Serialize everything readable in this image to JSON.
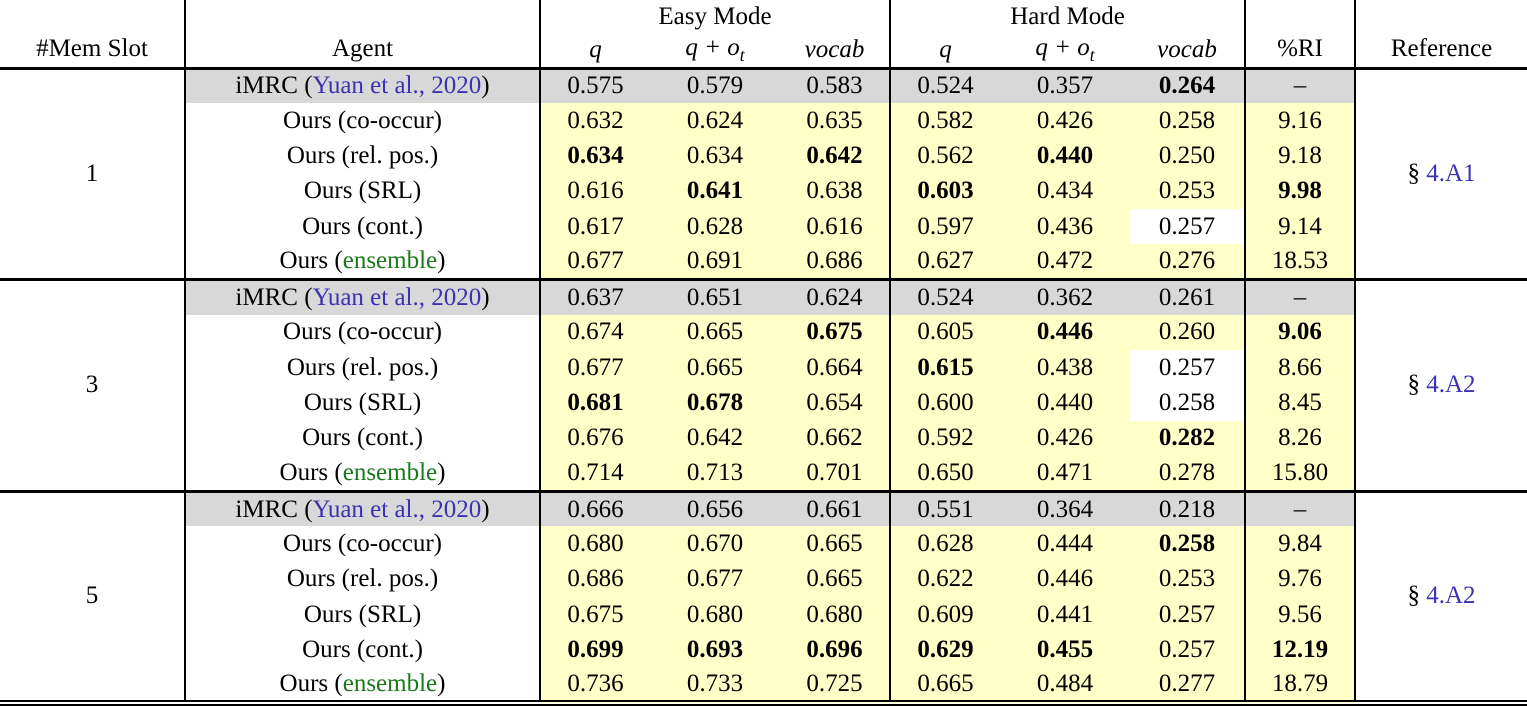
{
  "header": {
    "mem_slot": "#Mem Slot",
    "agent": "Agent",
    "easy_mode": "Easy Mode",
    "hard_mode": "Hard Mode",
    "subcolumns": [
      {
        "key": "q",
        "main": "q",
        "sub": ""
      },
      {
        "key": "q-ot",
        "main": "q + o",
        "sub": "t"
      },
      {
        "key": "vocab",
        "main": "vocab",
        "sub": ""
      }
    ],
    "ri": "%RI",
    "reference": "Reference"
  },
  "colors": {
    "baseline_row_bg": "#d8d8d8",
    "highlight_bg": "#ffffc8",
    "citation_link": "#3b32b4",
    "ensemble_green": "#1a7a1a"
  },
  "groups": [
    {
      "mem_slot": "1",
      "reference": {
        "prefix": "§ ",
        "link": "4.A1"
      },
      "rows": [
        {
          "baseline": true,
          "agent": [
            {
              "t": "iMRC ("
            },
            {
              "t": "Yuan et al., 2020",
              "c": "cite",
              "link": true
            },
            {
              "t": ")"
            }
          ],
          "values": [
            {
              "v": "0.575"
            },
            {
              "v": "0.579"
            },
            {
              "v": "0.583"
            },
            {
              "v": "0.524"
            },
            {
              "v": "0.357"
            },
            {
              "v": "0.264",
              "bold": true
            }
          ],
          "ri": {
            "v": "–"
          }
        },
        {
          "agent": [
            {
              "t": "Ours (co-occur)"
            }
          ],
          "values": [
            {
              "v": "0.632"
            },
            {
              "v": "0.624"
            },
            {
              "v": "0.635"
            },
            {
              "v": "0.582"
            },
            {
              "v": "0.426"
            },
            {
              "v": "0.258"
            }
          ],
          "ri": {
            "v": "9.16"
          }
        },
        {
          "agent": [
            {
              "t": "Ours (rel. pos.)"
            }
          ],
          "values": [
            {
              "v": "0.634",
              "bold": true
            },
            {
              "v": "0.634"
            },
            {
              "v": "0.642",
              "bold": true
            },
            {
              "v": "0.562"
            },
            {
              "v": "0.440",
              "bold": true
            },
            {
              "v": "0.250"
            }
          ],
          "ri": {
            "v": "9.18"
          }
        },
        {
          "agent": [
            {
              "t": "Ours (SRL)"
            }
          ],
          "values": [
            {
              "v": "0.616"
            },
            {
              "v": "0.641",
              "bold": true
            },
            {
              "v": "0.638"
            },
            {
              "v": "0.603",
              "bold": true
            },
            {
              "v": "0.434"
            },
            {
              "v": "0.253"
            }
          ],
          "ri": {
            "v": "9.98",
            "bold": true
          }
        },
        {
          "agent": [
            {
              "t": "Ours (cont.)"
            }
          ],
          "values": [
            {
              "v": "0.617"
            },
            {
              "v": "0.628"
            },
            {
              "v": "0.616"
            },
            {
              "v": "0.597"
            },
            {
              "v": "0.436"
            },
            {
              "v": "0.257",
              "plain": true
            }
          ],
          "ri": {
            "v": "9.14"
          }
        },
        {
          "agent": [
            {
              "t": "Ours ("
            },
            {
              "t": "ensemble",
              "c": "green"
            },
            {
              "t": ")"
            }
          ],
          "values": [
            {
              "v": "0.677"
            },
            {
              "v": "0.691"
            },
            {
              "v": "0.686"
            },
            {
              "v": "0.627"
            },
            {
              "v": "0.472"
            },
            {
              "v": "0.276"
            }
          ],
          "ri": {
            "v": "18.53"
          }
        }
      ]
    },
    {
      "mem_slot": "3",
      "reference": {
        "prefix": "§ ",
        "link": "4.A2"
      },
      "rows": [
        {
          "baseline": true,
          "agent": [
            {
              "t": "iMRC ("
            },
            {
              "t": "Yuan et al., 2020",
              "c": "cite",
              "link": true
            },
            {
              "t": ")"
            }
          ],
          "values": [
            {
              "v": "0.637"
            },
            {
              "v": "0.651"
            },
            {
              "v": "0.624"
            },
            {
              "v": "0.524"
            },
            {
              "v": "0.362"
            },
            {
              "v": "0.261"
            }
          ],
          "ri": {
            "v": "–"
          }
        },
        {
          "agent": [
            {
              "t": "Ours (co-occur)"
            }
          ],
          "values": [
            {
              "v": "0.674"
            },
            {
              "v": "0.665"
            },
            {
              "v": "0.675",
              "bold": true
            },
            {
              "v": "0.605"
            },
            {
              "v": "0.446",
              "bold": true
            },
            {
              "v": "0.260"
            }
          ],
          "ri": {
            "v": "9.06",
            "bold": true
          }
        },
        {
          "agent": [
            {
              "t": "Ours (rel. pos.)"
            }
          ],
          "values": [
            {
              "v": "0.677"
            },
            {
              "v": "0.665"
            },
            {
              "v": "0.664"
            },
            {
              "v": "0.615",
              "bold": true
            },
            {
              "v": "0.438"
            },
            {
              "v": "0.257",
              "plain": true
            }
          ],
          "ri": {
            "v": "8.66"
          }
        },
        {
          "agent": [
            {
              "t": "Ours (SRL)"
            }
          ],
          "values": [
            {
              "v": "0.681",
              "bold": true
            },
            {
              "v": "0.678",
              "bold": true
            },
            {
              "v": "0.654"
            },
            {
              "v": "0.600"
            },
            {
              "v": "0.440"
            },
            {
              "v": "0.258",
              "plain": true
            }
          ],
          "ri": {
            "v": "8.45"
          }
        },
        {
          "agent": [
            {
              "t": "Ours (cont.)"
            }
          ],
          "values": [
            {
              "v": "0.676"
            },
            {
              "v": "0.642"
            },
            {
              "v": "0.662"
            },
            {
              "v": "0.592"
            },
            {
              "v": "0.426"
            },
            {
              "v": "0.282",
              "bold": true
            }
          ],
          "ri": {
            "v": "8.26"
          }
        },
        {
          "agent": [
            {
              "t": "Ours ("
            },
            {
              "t": "ensemble",
              "c": "green"
            },
            {
              "t": ")"
            }
          ],
          "values": [
            {
              "v": "0.714"
            },
            {
              "v": "0.713"
            },
            {
              "v": "0.701"
            },
            {
              "v": "0.650"
            },
            {
              "v": "0.471"
            },
            {
              "v": "0.278"
            }
          ],
          "ri": {
            "v": "15.80"
          }
        }
      ]
    },
    {
      "mem_slot": "5",
      "reference": {
        "prefix": "§ ",
        "link": "4.A2"
      },
      "rows": [
        {
          "baseline": true,
          "agent": [
            {
              "t": "iMRC ("
            },
            {
              "t": "Yuan et al., 2020",
              "c": "cite",
              "link": true
            },
            {
              "t": ")"
            }
          ],
          "values": [
            {
              "v": "0.666"
            },
            {
              "v": "0.656"
            },
            {
              "v": "0.661"
            },
            {
              "v": "0.551"
            },
            {
              "v": "0.364"
            },
            {
              "v": "0.218"
            }
          ],
          "ri": {
            "v": "–"
          }
        },
        {
          "agent": [
            {
              "t": "Ours (co-occur)"
            }
          ],
          "values": [
            {
              "v": "0.680"
            },
            {
              "v": "0.670"
            },
            {
              "v": "0.665"
            },
            {
              "v": "0.628"
            },
            {
              "v": "0.444"
            },
            {
              "v": "0.258",
              "bold": true
            }
          ],
          "ri": {
            "v": "9.84"
          }
        },
        {
          "agent": [
            {
              "t": "Ours (rel. pos.)"
            }
          ],
          "values": [
            {
              "v": "0.686"
            },
            {
              "v": "0.677"
            },
            {
              "v": "0.665"
            },
            {
              "v": "0.622"
            },
            {
              "v": "0.446"
            },
            {
              "v": "0.253"
            }
          ],
          "ri": {
            "v": "9.76"
          }
        },
        {
          "agent": [
            {
              "t": "Ours (SRL)"
            }
          ],
          "values": [
            {
              "v": "0.675"
            },
            {
              "v": "0.680"
            },
            {
              "v": "0.680"
            },
            {
              "v": "0.609"
            },
            {
              "v": "0.441"
            },
            {
              "v": "0.257"
            }
          ],
          "ri": {
            "v": "9.56"
          }
        },
        {
          "agent": [
            {
              "t": "Ours (cont.)"
            }
          ],
          "values": [
            {
              "v": "0.699",
              "bold": true
            },
            {
              "v": "0.693",
              "bold": true
            },
            {
              "v": "0.696",
              "bold": true
            },
            {
              "v": "0.629",
              "bold": true
            },
            {
              "v": "0.455",
              "bold": true
            },
            {
              "v": "0.257"
            }
          ],
          "ri": {
            "v": "12.19",
            "bold": true
          }
        },
        {
          "agent": [
            {
              "t": "Ours ("
            },
            {
              "t": "ensemble",
              "c": "green"
            },
            {
              "t": ")"
            }
          ],
          "values": [
            {
              "v": "0.736"
            },
            {
              "v": "0.733"
            },
            {
              "v": "0.725"
            },
            {
              "v": "0.665"
            },
            {
              "v": "0.484"
            },
            {
              "v": "0.277"
            }
          ],
          "ri": {
            "v": "18.79"
          }
        }
      ]
    }
  ]
}
